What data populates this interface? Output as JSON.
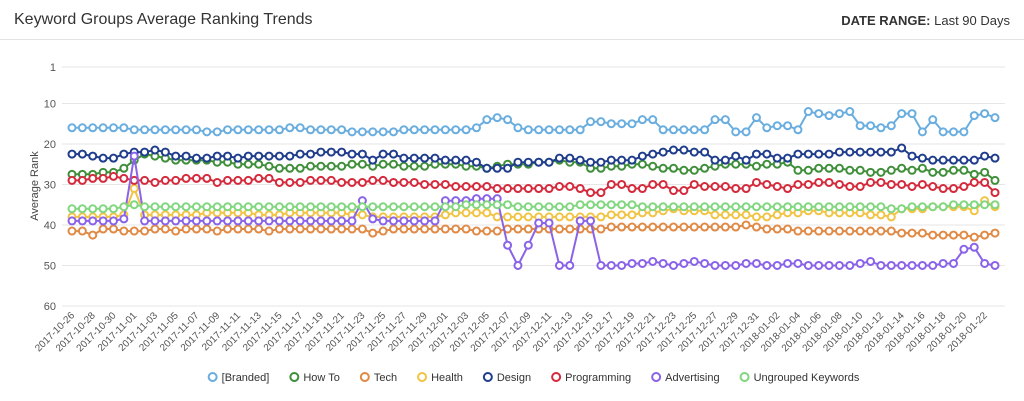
{
  "header": {
    "title": "Keyword Groups Average Ranking Trends",
    "date_range_label": "DATE RANGE:",
    "date_range": "Last 90 Days"
  },
  "chart_data": {
    "type": "line",
    "y_label": "Average Rank",
    "ylim": [
      1,
      60
    ],
    "yticks": [
      1,
      10,
      20,
      30,
      40,
      50,
      60
    ],
    "y_reversed": true,
    "grid": true,
    "legend": "bottom",
    "categories": [
      "2017-10-26",
      null,
      "2017-10-28",
      null,
      "2017-10-30",
      null,
      "2017-11-01",
      null,
      "2017-11-03",
      null,
      "2017-11-05",
      null,
      "2017-11-07",
      null,
      "2017-11-09",
      null,
      "2017-11-11",
      null,
      "2017-11-13",
      null,
      "2017-11-15",
      null,
      "2017-11-17",
      null,
      "2017-11-19",
      null,
      "2017-11-21",
      null,
      "2017-11-23",
      null,
      "2017-11-25",
      null,
      "2017-11-27",
      null,
      "2017-11-29",
      null,
      "2017-12-01",
      null,
      "2017-12-03",
      null,
      "2017-12-05",
      null,
      "2017-12-07",
      null,
      "2017-12-09",
      null,
      "2017-12-11",
      null,
      "2017-12-13",
      null,
      "2017-12-15",
      null,
      "2017-12-17",
      null,
      "2017-12-19",
      null,
      "2017-12-21",
      null,
      "2017-12-23",
      null,
      "2017-12-25",
      null,
      "2017-12-27",
      null,
      "2017-12-29",
      null,
      "2017-12-31",
      null,
      "2018-01-02",
      null,
      "2018-01-04",
      null,
      "2018-01-06",
      null,
      "2018-01-08",
      null,
      "2018-01-10",
      null,
      "2018-01-12",
      null,
      "2018-01-14",
      null,
      "2018-01-16",
      null,
      "2018-01-18",
      null,
      "2018-01-20",
      null,
      "2018-01-22",
      null
    ],
    "series": [
      {
        "name": "[Branded]",
        "color": "#6aaee0",
        "values": [
          16,
          16,
          16,
          16,
          16,
          16,
          16.5,
          16.5,
          16.5,
          16.5,
          16.5,
          16.5,
          16.5,
          17,
          17,
          16.5,
          16.5,
          16.5,
          16.5,
          16.5,
          16.5,
          16,
          16,
          16.5,
          16.5,
          16.5,
          16.5,
          17,
          17,
          17,
          17,
          17,
          16.5,
          16.5,
          16.5,
          16.5,
          16.5,
          16.5,
          16.5,
          16,
          14,
          13.5,
          14,
          16,
          16.5,
          16.5,
          16.5,
          16.5,
          16.5,
          16.5,
          14.5,
          14.5,
          15,
          15,
          15,
          14,
          14,
          16.5,
          16.5,
          16.5,
          16.5,
          16.5,
          14,
          14,
          17,
          17,
          13.5,
          16,
          15.5,
          15.5,
          16.5,
          12,
          12.5,
          13,
          12.5,
          12,
          15.5,
          15.5,
          16,
          15.5,
          12.5,
          12.5,
          17,
          14,
          17,
          17,
          17,
          13,
          12.5,
          13.5
        ]
      },
      {
        "name": "How To",
        "color": "#3f8f3a",
        "values": [
          27.5,
          27.5,
          27.5,
          27,
          27,
          26,
          24,
          22.5,
          23,
          23.5,
          24,
          24,
          24,
          24,
          24.5,
          24.5,
          25,
          25,
          25,
          25.5,
          26,
          26,
          26,
          25.5,
          25.5,
          25.5,
          25.5,
          25,
          25,
          25.5,
          25,
          25,
          25.5,
          25.5,
          25.5,
          25,
          25,
          25,
          25.5,
          25.5,
          26,
          25.5,
          25,
          25,
          25,
          24.5,
          24.5,
          24,
          24.5,
          24.5,
          26,
          26,
          25.5,
          25.5,
          25,
          25,
          25.5,
          26,
          26,
          26.5,
          26.5,
          26,
          25.5,
          25,
          25,
          25,
          25.5,
          25,
          25,
          24.5,
          26.5,
          26.5,
          26,
          26,
          26,
          26.5,
          26.5,
          27,
          27,
          26.5,
          26,
          26.5,
          26,
          27,
          27,
          26.5,
          26.5,
          27.5,
          27,
          29
        ]
      },
      {
        "name": "Tech",
        "color": "#e08a45",
        "values": [
          41.5,
          41.5,
          42.5,
          41,
          41,
          41.5,
          41.5,
          41.5,
          41,
          41,
          41.5,
          41,
          41,
          41,
          41.5,
          41,
          41,
          41,
          41,
          41.5,
          41,
          41,
          41,
          41,
          41,
          41,
          41,
          41,
          41,
          42,
          41.5,
          41,
          41,
          41,
          41,
          41,
          41,
          41,
          41,
          41.5,
          41.5,
          41.5,
          41,
          41,
          41,
          41,
          41,
          41,
          41,
          41,
          41,
          41,
          40.5,
          40.5,
          40.5,
          40.5,
          40.5,
          40.5,
          40.5,
          40.5,
          40.5,
          40.5,
          40.5,
          40.5,
          40.5,
          40,
          40.5,
          41,
          41,
          41,
          41.5,
          41.5,
          41.5,
          41.5,
          41.5,
          41.5,
          41.5,
          41.5,
          41.5,
          41.5,
          42,
          42,
          42,
          42.5,
          42.5,
          42.5,
          42.5,
          43,
          42.5,
          42
        ]
      },
      {
        "name": "Health",
        "color": "#f1c445",
        "values": [
          38,
          38,
          38,
          38,
          38,
          37.5,
          31,
          37.5,
          37.5,
          37.5,
          37.5,
          37.5,
          37.5,
          37,
          37,
          37,
          37,
          37,
          37.5,
          37.5,
          37.5,
          37,
          37,
          37,
          37,
          37,
          37,
          37.5,
          37.5,
          38,
          38,
          38,
          38,
          38,
          38,
          38,
          37.5,
          37,
          37,
          37,
          37,
          38,
          38,
          38,
          38,
          38,
          38,
          38,
          38,
          38,
          38,
          38,
          37.5,
          37.5,
          37.5,
          37,
          37,
          36.5,
          36,
          36.5,
          36.5,
          36.5,
          37.5,
          37.5,
          37.5,
          37.5,
          38,
          38,
          37.5,
          37,
          37,
          36.5,
          36.5,
          37,
          37,
          37,
          37,
          37.5,
          37.5,
          38,
          36,
          36,
          36,
          35.5,
          35.5,
          35.5,
          35.5,
          36.5,
          34,
          35.5
        ]
      },
      {
        "name": "Design",
        "color": "#1f3d8c",
        "values": [
          22.5,
          22.5,
          23,
          23.5,
          23.5,
          22.5,
          22,
          22,
          21.5,
          22,
          23,
          23,
          23.5,
          23.5,
          23,
          23,
          23.5,
          23,
          23,
          23,
          23,
          23,
          22.5,
          22.5,
          22,
          22,
          22,
          22.5,
          22.5,
          24,
          22.5,
          22.5,
          23.5,
          23.5,
          23.5,
          23.5,
          24,
          24,
          24,
          24.5,
          26,
          26,
          26,
          24.5,
          24.5,
          24.5,
          24.5,
          23.5,
          23.5,
          24,
          24.5,
          24.5,
          24,
          24,
          24,
          23,
          22.5,
          22,
          21.5,
          21.5,
          22,
          22,
          24,
          24,
          23,
          24,
          22.5,
          22.5,
          23.5,
          23.5,
          22.5,
          22.5,
          22.5,
          22.5,
          22,
          22,
          22,
          22,
          22,
          22,
          21,
          23,
          23.5,
          24,
          24,
          24,
          24,
          24,
          23,
          23.5
        ]
      },
      {
        "name": "Programming",
        "color": "#d42a3c",
        "values": [
          29,
          29,
          28.5,
          28.5,
          28,
          28.5,
          29,
          29,
          29.5,
          29,
          29,
          28.5,
          28.5,
          28.5,
          29.5,
          29,
          29,
          29,
          28.5,
          28.5,
          29.5,
          29.5,
          29.5,
          29,
          29,
          29,
          29.5,
          29.5,
          29.5,
          29,
          29,
          29.5,
          29.5,
          29.5,
          30,
          30,
          30,
          30.5,
          30.5,
          30.5,
          30.5,
          31,
          31,
          31,
          31,
          31,
          31,
          30.5,
          30.5,
          31,
          32,
          32,
          30,
          30,
          31,
          31,
          30,
          30,
          31.5,
          31.5,
          30,
          30.5,
          30.5,
          30.5,
          31,
          31,
          29.5,
          30,
          30.5,
          31,
          30,
          30,
          29.5,
          29.5,
          30,
          30.5,
          30.5,
          29.5,
          29.5,
          30,
          30,
          30.5,
          30,
          30.5,
          31,
          31,
          30.5,
          29.5,
          29.5,
          32
        ]
      },
      {
        "name": "Advertising",
        "color": "#8a63e8",
        "values": [
          39,
          39,
          39,
          39,
          39,
          38.5,
          23,
          39,
          39,
          39,
          39,
          39,
          39,
          39,
          39,
          39,
          39,
          39,
          39,
          39,
          39,
          39,
          39,
          39,
          39,
          39,
          39,
          39,
          34,
          38.5,
          39,
          39,
          39,
          39,
          39,
          39,
          34,
          34,
          34,
          33.5,
          33.5,
          33.5,
          45,
          50,
          45,
          39.5,
          39.5,
          50,
          50,
          39,
          39,
          50,
          50,
          50,
          49.5,
          49.5,
          49,
          49.5,
          50,
          49.5,
          49,
          49.5,
          50,
          50,
          50,
          49.5,
          49.5,
          50,
          50,
          49.5,
          49.5,
          50,
          50,
          50,
          50,
          50,
          49.5,
          49,
          50,
          50,
          50,
          50,
          50,
          50,
          49.5,
          49.5,
          46,
          45.5,
          49.5,
          50
        ]
      },
      {
        "name": "Ungrouped Keywords",
        "color": "#82d67f",
        "values": [
          36,
          36,
          36,
          36,
          36,
          35.5,
          35,
          35.5,
          35.5,
          35.5,
          35.5,
          35.5,
          35.5,
          35.5,
          35.5,
          35.5,
          35.5,
          35.5,
          35.5,
          35.5,
          35.5,
          35.5,
          35.5,
          35.5,
          35.5,
          35.5,
          35.5,
          35.5,
          35.5,
          35.5,
          35.5,
          35.5,
          35.5,
          35.5,
          35.5,
          35.5,
          35.5,
          35.5,
          35,
          35,
          35,
          35,
          35,
          35.5,
          35.5,
          35.5,
          35.5,
          35.5,
          35.5,
          35,
          35,
          35,
          35,
          35,
          35,
          35.5,
          35.5,
          35.5,
          35.5,
          35.5,
          35.5,
          35.5,
          35.5,
          35.5,
          35.5,
          35.5,
          35.5,
          35.5,
          35.5,
          35.5,
          35.5,
          35.5,
          35.5,
          35.5,
          35.5,
          35.5,
          35.5,
          35.5,
          35.5,
          36,
          36,
          35.5,
          35.5,
          35.5,
          35.5,
          35,
          35,
          35,
          35,
          35
        ]
      }
    ]
  }
}
